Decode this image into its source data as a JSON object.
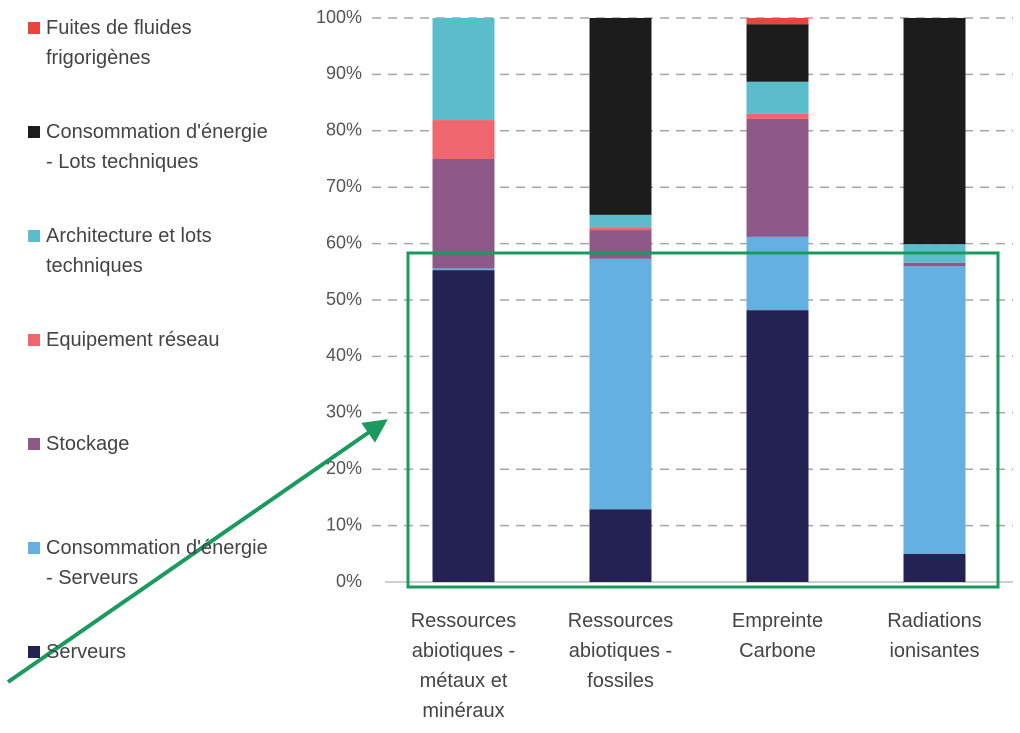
{
  "chart_data": {
    "type": "bar",
    "stacked": true,
    "categories": [
      "Ressources abiotiques - métaux et minéraux",
      "Ressources abiotiques - fossiles",
      "Empreinte Carbone",
      "Radiations ionisantes"
    ],
    "series": [
      {
        "name": "Serveurs",
        "color": "#232252",
        "values": [
          55.3,
          12.9,
          48.2,
          5.0
        ]
      },
      {
        "name": "Consommation d'énergie - Serveurs",
        "color": "#64b1e1",
        "values": [
          0.3,
          44.4,
          13.0,
          51.0
        ]
      },
      {
        "name": "Stockage",
        "color": "#8e5889",
        "values": [
          19.4,
          5.1,
          20.9,
          0.6
        ]
      },
      {
        "name": "Equipement réseau",
        "color": "#f0666f",
        "values": [
          6.9,
          0.5,
          0.9,
          0
        ]
      },
      {
        "name": "Architecture et lots techniques",
        "color": "#5bbccb",
        "values": [
          18.1,
          2.2,
          5.7,
          3.3
        ]
      },
      {
        "name": "Consommation d'énergie - Lots techniques",
        "color": "#1c1c1c",
        "values": [
          0,
          34.9,
          10.2,
          40.1
        ]
      },
      {
        "name": "Fuites de fluides frigorigènes",
        "color": "#e8453c",
        "values": [
          0,
          0,
          1.1,
          0
        ]
      }
    ],
    "ylim": [
      0,
      100
    ],
    "yticks": [
      {
        "value": 0,
        "label": "0%"
      },
      {
        "value": 10,
        "label": "10%"
      },
      {
        "value": 20,
        "label": "20%"
      },
      {
        "value": 30,
        "label": "30%"
      },
      {
        "value": 40,
        "label": "40%"
      },
      {
        "value": 50,
        "label": "50%"
      },
      {
        "value": 60,
        "label": "60%"
      },
      {
        "value": 70,
        "label": "70%"
      },
      {
        "value": 80,
        "label": "80%"
      },
      {
        "value": 90,
        "label": "90%"
      },
      {
        "value": 100,
        "label": "100%"
      }
    ],
    "grid": true
  }
}
